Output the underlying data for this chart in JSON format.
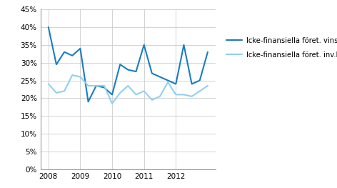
{
  "x_vinstkvot": [
    2008.0,
    2008.25,
    2008.5,
    2008.75,
    2009.0,
    2009.25,
    2009.5,
    2009.75,
    2010.0,
    2010.25,
    2010.5,
    2010.75,
    2011.0,
    2011.25,
    2011.5,
    2011.75,
    2012.0,
    2012.25,
    2012.5,
    2012.75,
    2013.0
  ],
  "y_vinstkvot": [
    0.4,
    0.295,
    0.33,
    0.32,
    0.34,
    0.19,
    0.235,
    0.23,
    0.21,
    0.295,
    0.28,
    0.275,
    0.35,
    0.27,
    0.26,
    0.25,
    0.24,
    0.35,
    0.24,
    0.25,
    0.33
  ],
  "x_invkvot": [
    2008.0,
    2008.25,
    2008.5,
    2008.75,
    2009.0,
    2009.25,
    2009.5,
    2009.75,
    2010.0,
    2010.25,
    2010.5,
    2010.75,
    2011.0,
    2011.25,
    2011.5,
    2011.75,
    2012.0,
    2012.25,
    2012.5,
    2012.75,
    2013.0
  ],
  "y_invkvot": [
    0.24,
    0.215,
    0.22,
    0.265,
    0.26,
    0.235,
    0.235,
    0.235,
    0.185,
    0.215,
    0.235,
    0.21,
    0.22,
    0.195,
    0.205,
    0.245,
    0.21,
    0.21,
    0.205,
    0.22,
    0.235
  ],
  "color_vinstkvot": "#1A7DBF",
  "color_invkvot": "#90D0EE",
  "label_vinstkvot": "Icke-finansiella föret. vinstkvot",
  "label_invkvot": "Icke-finansiella föret. inv.kvot",
  "ylim": [
    0.0,
    0.45
  ],
  "yticks": [
    0.0,
    0.05,
    0.1,
    0.15,
    0.2,
    0.25,
    0.3,
    0.35,
    0.4,
    0.45
  ],
  "xticks": [
    2008,
    2009,
    2010,
    2011,
    2012
  ],
  "xlim_left": 2007.75,
  "xlim_right": 2013.25,
  "grid_color": "#CCCCCC",
  "background_color": "#FFFFFF",
  "linewidth_vinstkvot": 1.5,
  "linewidth_invkvot": 1.5,
  "tick_labelsize": 7.5,
  "legend_fontsize": 7.2
}
